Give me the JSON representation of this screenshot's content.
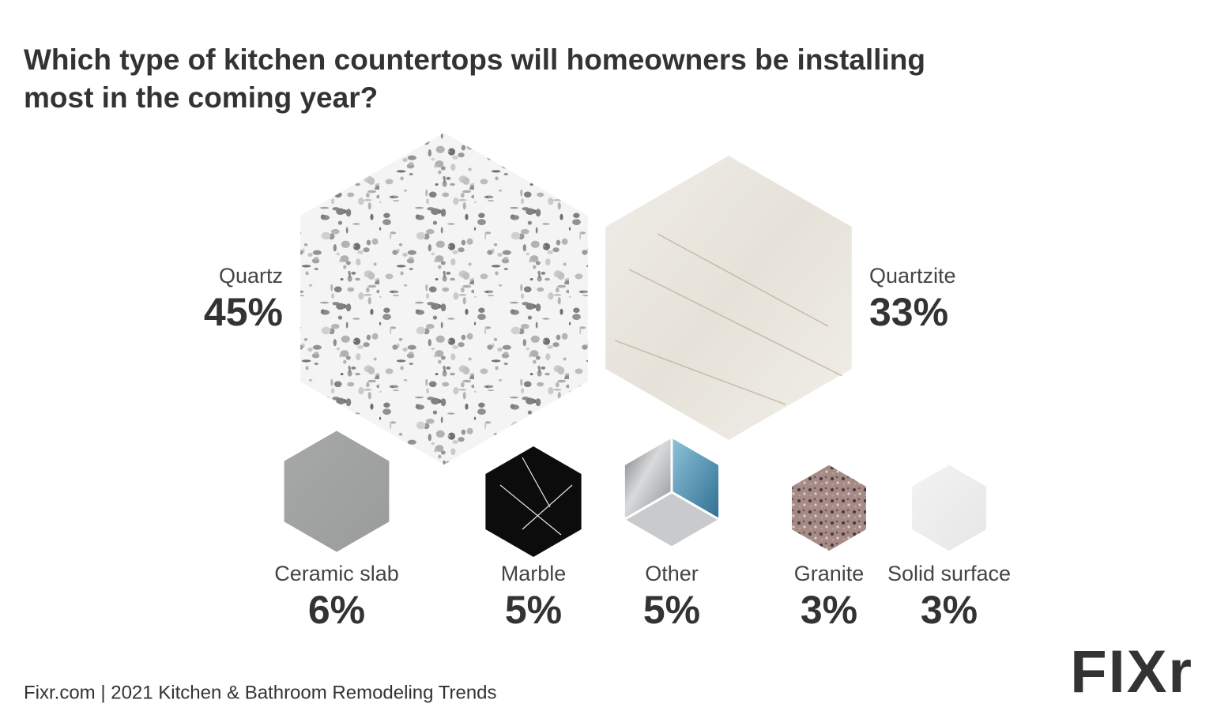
{
  "chart_data": {
    "type": "hexagon",
    "title": "Which type of kitchen countertops will homeowners be installing most in the coming year?",
    "categories": [
      "Quartz",
      "Quartzite",
      "Ceramic slab",
      "Marble",
      "Other",
      "Granite",
      "Solid surface"
    ],
    "values": [
      45,
      33,
      6,
      5,
      5,
      3,
      3
    ],
    "value_labels": [
      "45%",
      "33%",
      "6%",
      "5%",
      "5%",
      "3%",
      "3%"
    ],
    "source": "Fixr.com | 2021 Kitchen & Bathroom Remodeling Trends",
    "logo": "FIXr"
  }
}
